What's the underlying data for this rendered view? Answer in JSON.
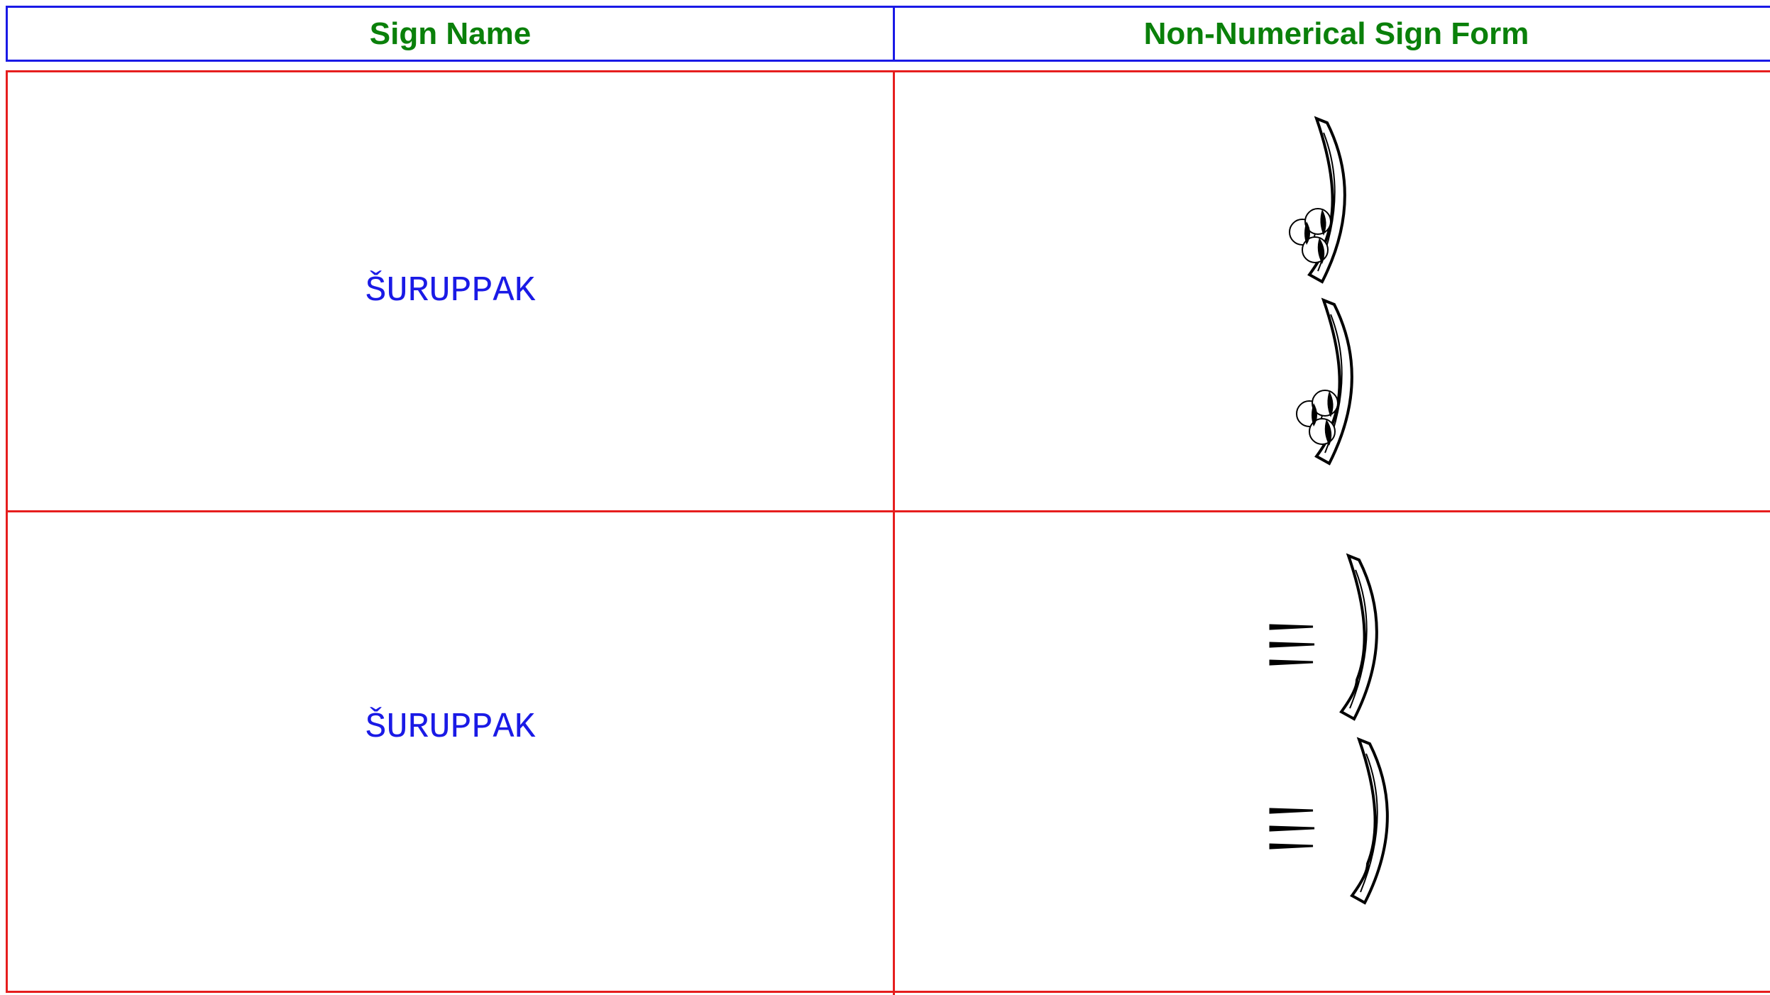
{
  "table": {
    "header": [
      "Sign Name",
      "Non-Numerical Sign Form"
    ],
    "rows": [
      [
        "ŠURUPPAK"
      ],
      [
        "ŠURUPPAK"
      ]
    ]
  }
}
